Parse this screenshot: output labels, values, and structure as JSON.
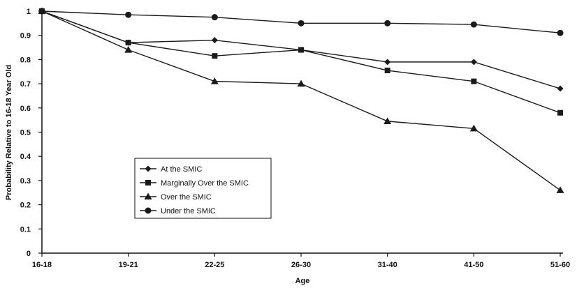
{
  "chart_data": {
    "type": "line",
    "xlabel": "Age",
    "ylabel": "Probability Relative to 16-18 Year Old",
    "categories": [
      "16-18",
      "19-21",
      "22-25",
      "26-30",
      "31-40",
      "41-50",
      "51-60"
    ],
    "ylim": [
      0,
      1
    ],
    "yticks": [
      "0",
      "0.1",
      "0.2",
      "0.3",
      "0.4",
      "0.5",
      "0.6",
      "0.7",
      "0.8",
      "0.9",
      "1"
    ],
    "grid": false,
    "legend_position": "lower-left",
    "series": [
      {
        "name": "At the SMIC",
        "marker": "diamond",
        "values": [
          1.0,
          0.87,
          0.88,
          0.84,
          0.79,
          0.79,
          0.68
        ]
      },
      {
        "name": "Marginally Over the SMIC",
        "marker": "square",
        "values": [
          1.0,
          0.87,
          0.815,
          0.84,
          0.755,
          0.71,
          0.58
        ]
      },
      {
        "name": "Over the SMIC",
        "marker": "triangle",
        "values": [
          1.0,
          0.84,
          0.71,
          0.7,
          0.545,
          0.515,
          0.26
        ]
      },
      {
        "name": "Under the SMIC",
        "marker": "circle",
        "values": [
          1.0,
          0.985,
          0.975,
          0.95,
          0.95,
          0.945,
          0.91
        ]
      }
    ],
    "line_color": "#1a1a1a"
  }
}
